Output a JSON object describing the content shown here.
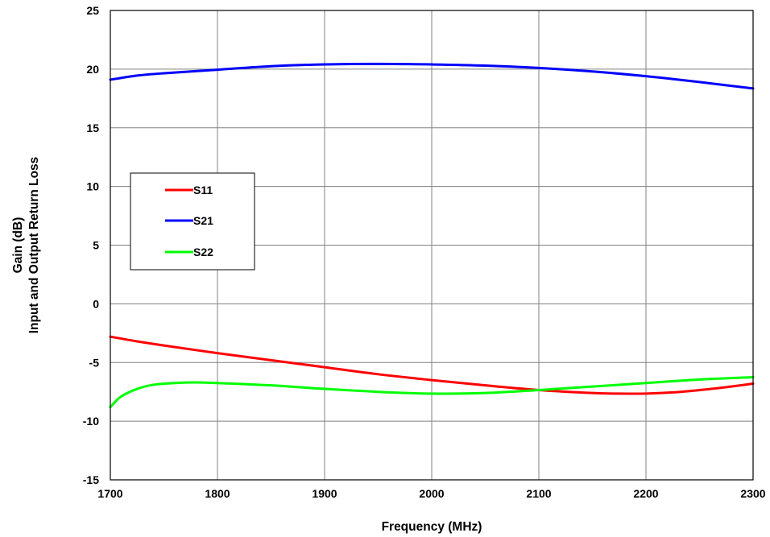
{
  "chart_data": {
    "type": "line",
    "title": "",
    "xlabel": "Frequency (MHz)",
    "ylabel_lines": [
      "Gain (dB)",
      "Input and Output Return Loss"
    ],
    "xlim": [
      1700,
      2300
    ],
    "ylim": [
      -15,
      25
    ],
    "xticks": [
      1700,
      1800,
      1900,
      2000,
      2100,
      2200,
      2300
    ],
    "yticks": [
      -15,
      -10,
      -5,
      0,
      5,
      10,
      15,
      20,
      25
    ],
    "grid": true,
    "legend_position": "left-middle",
    "series": [
      {
        "name": "S11",
        "color": "#ff0000",
        "x": [
          1700,
          1725,
          1750,
          1800,
          1850,
          1900,
          1950,
          2000,
          2050,
          2100,
          2150,
          2175,
          2200,
          2225,
          2250,
          2275,
          2300
        ],
        "y": [
          -2.8,
          -3.2,
          -3.55,
          -4.2,
          -4.8,
          -5.4,
          -6.0,
          -6.5,
          -6.95,
          -7.35,
          -7.6,
          -7.65,
          -7.65,
          -7.55,
          -7.35,
          -7.1,
          -6.8
        ]
      },
      {
        "name": "S21",
        "color": "#0000ff",
        "x": [
          1700,
          1725,
          1750,
          1800,
          1850,
          1900,
          1950,
          2000,
          2050,
          2100,
          2150,
          2200,
          2250,
          2300
        ],
        "y": [
          19.1,
          19.45,
          19.65,
          19.95,
          20.25,
          20.4,
          20.45,
          20.4,
          20.3,
          20.1,
          19.8,
          19.4,
          18.9,
          18.35
        ]
      },
      {
        "name": "S22",
        "color": "#00ff00",
        "x": [
          1700,
          1710,
          1725,
          1740,
          1760,
          1780,
          1800,
          1850,
          1900,
          1950,
          2000,
          2050,
          2100,
          2150,
          2200,
          2250,
          2300
        ],
        "y": [
          -8.8,
          -7.9,
          -7.25,
          -6.9,
          -6.75,
          -6.7,
          -6.75,
          -6.95,
          -7.25,
          -7.5,
          -7.65,
          -7.6,
          -7.35,
          -7.05,
          -6.75,
          -6.45,
          -6.25
        ]
      }
    ]
  }
}
